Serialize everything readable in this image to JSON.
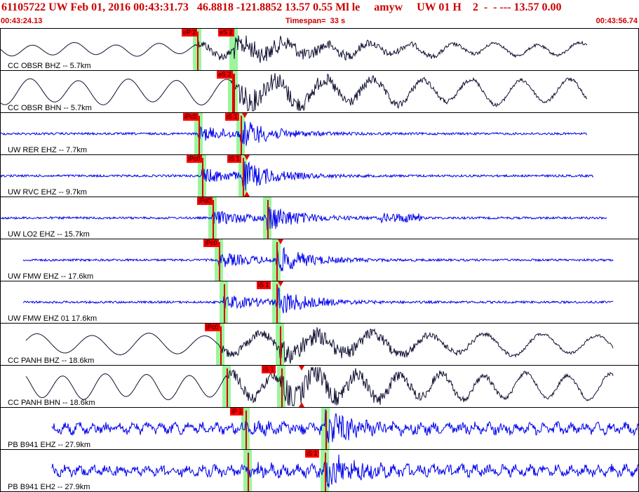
{
  "header": {
    "title": "61105722 UW Feb 01, 2016 00:43:31.73   46.8818 -121.8852 13.57 0.55 Ml le     amyw     UW 01 H    2  -  - --- 13.57 0.00",
    "start_time": "00:43:24.13",
    "timespan": "Timespan=  33 s",
    "end_time": "00:43:56.74"
  },
  "colors": {
    "trace_blue": "#0000ee",
    "trace_black": "#111133",
    "pick_red": "#ff0000",
    "band_green": "#9cf59c",
    "header_red": "#cc0000"
  },
  "traces": [
    {
      "label": "CC OBSR BHZ -- 5.7km",
      "color": "black",
      "type": "long",
      "start": 0.0,
      "end": 0.92,
      "p": 0.31,
      "s": 0.36,
      "picks": [
        {
          "text": "eP 2"
        },
        {
          "text": "eS 2"
        }
      ]
    },
    {
      "label": "CC OBSR BHN -- 5.7km",
      "color": "black",
      "type": "long2",
      "start": 0.0,
      "end": 0.92,
      "p": 0.31,
      "s": 0.36,
      "picks": [
        {
          "text": "eS 2"
        }
      ]
    },
    {
      "label": "UW RER EHZ -- 7.7km",
      "color": "blue",
      "type": "burst",
      "start": 0.0,
      "end": 0.92,
      "p": 0.31,
      "s": 0.37,
      "picks": [
        {
          "text": "iPc0"
        },
        {
          "text": "iS 1"
        }
      ]
    },
    {
      "label": "UW RVC EHZ -- 9.7km",
      "color": "blue",
      "type": "burst",
      "start": 0.0,
      "end": 0.93,
      "p": 0.32,
      "s": 0.38,
      "picks": [
        {
          "text": "iPc0"
        },
        {
          "text": "iS 1"
        }
      ]
    },
    {
      "label": "UW LO2 EHZ -- 15.7km",
      "color": "blue",
      "type": "burst2",
      "start": 0.0,
      "end": 0.95,
      "p": 0.34,
      "s": 0.42,
      "picks": [
        {
          "text": "iPd0"
        }
      ]
    },
    {
      "label": "UW FMW EHZ -- 17.6km",
      "color": "blue",
      "type": "burst",
      "start": 0.035,
      "end": 0.96,
      "p": 0.35,
      "s": 0.43,
      "picks": [
        {
          "text": "iPc0"
        }
      ]
    },
    {
      "label": "UW FMW EHZ 01 17.6km",
      "color": "blue",
      "type": "burst",
      "start": 0.035,
      "end": 0.96,
      "p": 0.35,
      "s": 0.43,
      "picks": [
        {
          "text": "iS 1"
        }
      ]
    },
    {
      "label": "CC PANH BHZ -- 18.6km",
      "color": "black",
      "type": "long3",
      "start": 0.04,
      "end": 0.96,
      "p": 0.35,
      "s": 0.44,
      "picks": [
        {
          "text": "iPc0"
        }
      ]
    },
    {
      "label": "CC PANH BHN -- 18.6km",
      "color": "black",
      "type": "long4",
      "start": 0.04,
      "end": 0.96,
      "p": 0.35,
      "s": 0.44,
      "picks": [
        {
          "text": "iS 1"
        }
      ]
    },
    {
      "label": "PB B941 EHZ -- 27.9km",
      "color": "blue",
      "type": "noisy",
      "start": 0.08,
      "end": 1.0,
      "p": 0.39,
      "s": 0.51,
      "picks": [
        {
          "text": "iP 1"
        }
      ]
    },
    {
      "label": "PB B941 EH2 -- 27.9km",
      "color": "blue",
      "type": "noisy",
      "start": 0.08,
      "end": 1.0,
      "p": 0.39,
      "s": 0.51,
      "picks": [
        {
          "text": "iS 1"
        }
      ]
    }
  ]
}
